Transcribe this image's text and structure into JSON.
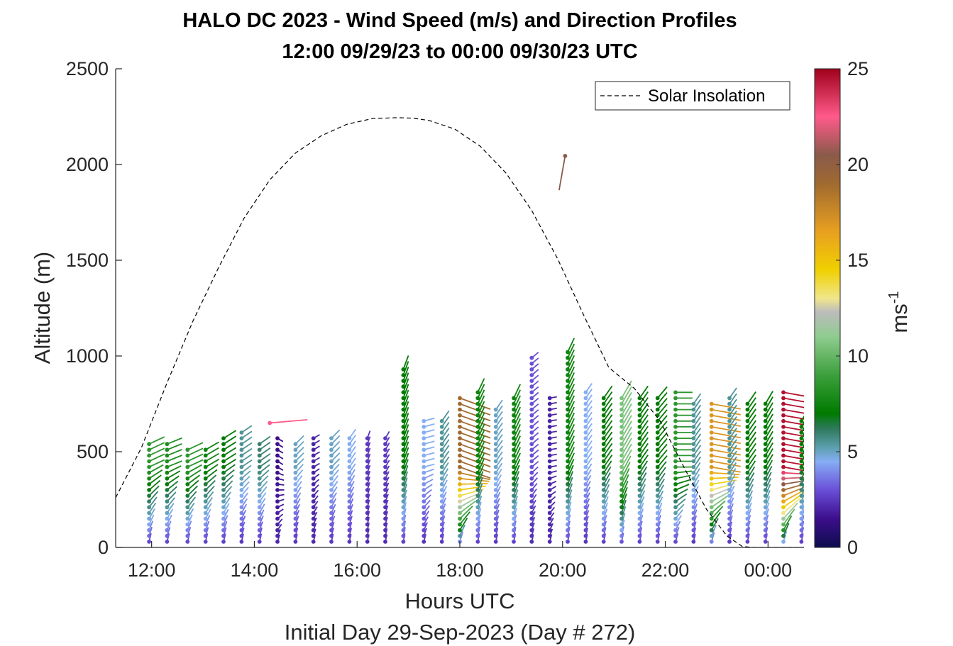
{
  "chart_data": {
    "type": "scatter",
    "title_line1": "HALO DC 2023 - Wind Speed (m/s) and Direction Profiles",
    "title_line2": "12:00 09/29/23 to 00:00 09/30/23  UTC",
    "xlabel": "Hours UTC",
    "subxlabel": "Initial Day 29-Sep-2023 (Day # 272)",
    "ylabel": "Altitude (m)",
    "xlim": [
      11.3,
      24.7
    ],
    "ylim": [
      0,
      2500
    ],
    "x_ticks": [
      12,
      14,
      16,
      18,
      20,
      22,
      24
    ],
    "x_tick_labels": [
      "12:00",
      "14:00",
      "16:00",
      "18:00",
      "20:00",
      "22:00",
      "00:00"
    ],
    "y_ticks": [
      0,
      500,
      1000,
      1500,
      2000,
      2500
    ],
    "y_tick_labels": [
      "0",
      "500",
      "1000",
      "1500",
      "2000",
      "2500"
    ],
    "legend": {
      "entries": [
        "Solar Insolation"
      ],
      "placement": "top-right"
    },
    "grid": false,
    "colorbar": {
      "label": "ms-1",
      "label_base": "ms",
      "label_sup": "-1",
      "range": [
        0,
        25
      ],
      "ticks": [
        0,
        5,
        10,
        15,
        20,
        25
      ],
      "tick_labels": [
        "0",
        "5",
        "10",
        "15",
        "20",
        "25"
      ],
      "stops": [
        {
          "v": 0,
          "color": "#0d0d4d"
        },
        {
          "v": 1.5,
          "color": "#3c0e8c"
        },
        {
          "v": 3,
          "color": "#6a4fd8"
        },
        {
          "v": 4.5,
          "color": "#86aef5"
        },
        {
          "v": 5.2,
          "color": "#5d9fb0"
        },
        {
          "v": 6.2,
          "color": "#2e7a5c"
        },
        {
          "v": 7,
          "color": "#007a00"
        },
        {
          "v": 9,
          "color": "#3ca03c"
        },
        {
          "v": 11,
          "color": "#8fcc8f"
        },
        {
          "v": 12.3,
          "color": "#bcbcbc"
        },
        {
          "v": 13,
          "color": "#f0e68c"
        },
        {
          "v": 14.5,
          "color": "#f0d000"
        },
        {
          "v": 16.5,
          "color": "#e8a020"
        },
        {
          "v": 19,
          "color": "#a06a30"
        },
        {
          "v": 20.5,
          "color": "#8a5a4a"
        },
        {
          "v": 22.5,
          "color": "#ff5a8a"
        },
        {
          "v": 25,
          "color": "#a0001a"
        }
      ]
    },
    "solar_insolation": {
      "name": "Solar Insolation",
      "style": "dashed",
      "x": [
        11.3,
        11.8,
        12.3,
        12.8,
        13.3,
        13.8,
        14.3,
        14.8,
        15.3,
        15.8,
        16.3,
        16.8,
        17.1,
        17.4,
        17.9,
        18.4,
        18.9,
        19.4,
        19.9,
        20.4,
        20.9,
        21.4,
        21.9,
        22.4,
        22.8,
        23.2,
        23.5,
        23.7,
        24.7
      ],
      "y": [
        260,
        520,
        860,
        1180,
        1460,
        1720,
        1920,
        2060,
        2150,
        2210,
        2240,
        2245,
        2242,
        2230,
        2185,
        2095,
        1955,
        1760,
        1510,
        1220,
        940,
        830,
        660,
        400,
        200,
        60,
        5,
        0,
        0
      ]
    },
    "wind_profiles": {
      "encoding": "Each barb: dot at (time, altitude) colored by wind speed (m/s); tail angle gives wind direction (deg).",
      "profiles": [
        {
          "time": 11.95,
          "top": 550,
          "spd_upper": 8.5,
          "dir_upper": 245
        },
        {
          "time": 12.3,
          "top": 555,
          "spd_upper": 8.0,
          "dir_upper": 248
        },
        {
          "time": 12.7,
          "top": 520,
          "spd_upper": 8.5,
          "dir_upper": 245
        },
        {
          "time": 13.05,
          "top": 525,
          "spd_upper": 7.5,
          "dir_upper": 240
        },
        {
          "time": 13.4,
          "top": 585,
          "spd_upper": 7.0,
          "dir_upper": 238
        },
        {
          "time": 13.75,
          "top": 610,
          "spd_upper": 5.5,
          "dir_upper": 236
        },
        {
          "time": 14.1,
          "top": 560,
          "spd_upper": 6.0,
          "dir_upper": 235
        },
        {
          "time": 14.45,
          "top": 580,
          "spd_upper": 1.5,
          "dir_upper": 300
        },
        {
          "time": 14.8,
          "top": 560,
          "spd_upper": 5.0,
          "dir_upper": 225
        },
        {
          "time": 15.15,
          "top": 585,
          "spd_upper": 2.0,
          "dir_upper": 240
        },
        {
          "time": 15.5,
          "top": 585,
          "spd_upper": 5.0,
          "dir_upper": 225
        },
        {
          "time": 15.85,
          "top": 585,
          "spd_upper": 4.5,
          "dir_upper": 215
        },
        {
          "time": 16.2,
          "top": 585,
          "spd_upper": 2.5,
          "dir_upper": 200
        },
        {
          "time": 16.55,
          "top": 585,
          "spd_upper": 2.5,
          "dir_upper": 210
        },
        {
          "time": 16.9,
          "top": 955,
          "spd_upper": 7.0,
          "dir_upper": 200
        },
        {
          "time": 17.3,
          "top": 680,
          "spd_upper": 4.5,
          "dir_upper": 255
        },
        {
          "time": 17.65,
          "top": 685,
          "spd_upper": 5.5,
          "dir_upper": 215
        },
        {
          "time": 18.0,
          "top": 790,
          "spd_upper": 19.0,
          "dir_upper": 290
        },
        {
          "time": 18.35,
          "top": 820,
          "spd_upper": 7.5,
          "dir_upper": 205
        },
        {
          "time": 18.7,
          "top": 720,
          "spd_upper": 5.0,
          "dir_upper": 215
        },
        {
          "time": 19.05,
          "top": 790,
          "spd_upper": 7.5,
          "dir_upper": 205
        },
        {
          "time": 19.4,
          "top": 1010,
          "spd_upper": 3.0,
          "dir_upper": 230
        },
        {
          "time": 19.75,
          "top": 790,
          "spd_upper": 2.0,
          "dir_upper": 260
        },
        {
          "time": 20.1,
          "top": 1045,
          "spd_upper": 7.5,
          "dir_upper": 205
        },
        {
          "time": 20.45,
          "top": 820,
          "spd_upper": 4.5,
          "dir_upper": 215
        },
        {
          "time": 20.8,
          "top": 790,
          "spd_upper": 7.0,
          "dir_upper": 215
        },
        {
          "time": 21.15,
          "top": 790,
          "spd_upper": 10.5,
          "dir_upper": 210
        },
        {
          "time": 21.5,
          "top": 790,
          "spd_upper": 7.0,
          "dir_upper": 215
        },
        {
          "time": 21.85,
          "top": 790,
          "spd_upper": 7.0,
          "dir_upper": 220
        },
        {
          "time": 22.2,
          "top": 820,
          "spd_upper": 8.5,
          "dir_upper": 270
        },
        {
          "time": 22.55,
          "top": 750,
          "spd_upper": 5.5,
          "dir_upper": 215
        },
        {
          "time": 22.9,
          "top": 750,
          "spd_upper": 17.0,
          "dir_upper": 280
        },
        {
          "time": 23.25,
          "top": 790,
          "spd_upper": 5.5,
          "dir_upper": 215
        },
        {
          "time": 23.6,
          "top": 750,
          "spd_upper": 7.0,
          "dir_upper": 215
        },
        {
          "time": 23.95,
          "top": 760,
          "spd_upper": 7.0,
          "dir_upper": 210
        },
        {
          "time": 24.3,
          "top": 820,
          "spd_upper": 24.5,
          "dir_upper": 280
        },
        {
          "time": 24.65,
          "top": 685,
          "spd_upper": 7.0,
          "dir_upper": 210
        }
      ],
      "isolated": [
        {
          "time": 20.05,
          "alt": 2045,
          "spd": 20.5,
          "dir": 10
        },
        {
          "time": 14.3,
          "alt": 650,
          "spd": 22.5,
          "dir": 265
        }
      ]
    }
  }
}
